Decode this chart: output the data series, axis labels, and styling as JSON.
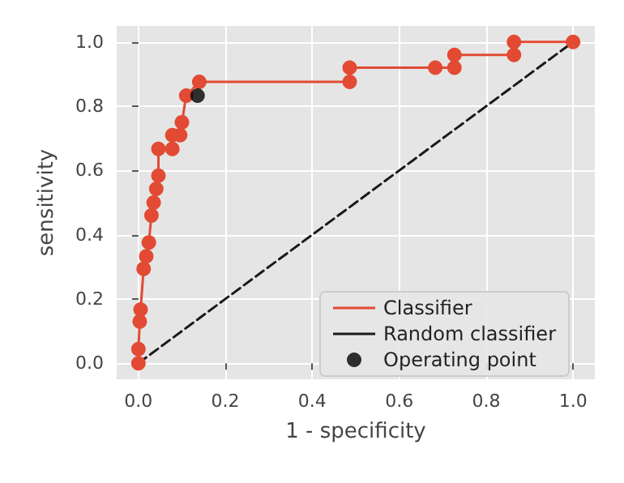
{
  "chart_data": {
    "type": "line",
    "xlabel": "1 - specificity",
    "ylabel": "sensitivity",
    "xlim": [
      -0.05,
      1.05
    ],
    "ylim": [
      -0.05,
      1.05
    ],
    "xticks": [
      {
        "value": 0,
        "label": "0.0"
      },
      {
        "value": 0.2,
        "label": "0.2"
      },
      {
        "value": 0.4,
        "label": "0.4"
      },
      {
        "value": 0.6,
        "label": "0.6"
      },
      {
        "value": 0.8,
        "label": "0.8"
      },
      {
        "value": 1,
        "label": "1.0"
      }
    ],
    "yticks": [
      {
        "value": 0,
        "label": "0.0"
      },
      {
        "value": 0.2,
        "label": "0.2"
      },
      {
        "value": 0.4,
        "label": "0.4"
      },
      {
        "value": 0.6,
        "label": "0.6"
      },
      {
        "value": 0.8,
        "label": "0.8"
      },
      {
        "value": 1,
        "label": "1.0"
      }
    ],
    "grid": true,
    "legend": "bottom right",
    "series": [
      {
        "name": "Classifier",
        "color": "#e24a33",
        "marker": "circle",
        "line_style": "solid",
        "x": [
          0,
          0,
          0.003,
          0.005,
          0.012,
          0.018,
          0.024,
          0.03,
          0.035,
          0.041,
          0.046,
          0.046,
          0.078,
          0.078,
          0.096,
          0.1,
          0.11,
          0.14,
          0.486,
          0.486,
          0.683,
          0.727,
          0.727,
          0.864,
          0.864,
          1.0
        ],
        "values": [
          0,
          0.044,
          0.13,
          0.167,
          0.294,
          0.333,
          0.376,
          0.46,
          0.5,
          0.543,
          0.584,
          0.667,
          0.667,
          0.71,
          0.71,
          0.75,
          0.833,
          0.876,
          0.876,
          0.92,
          0.92,
          0.92,
          0.96,
          0.96,
          1.0,
          1.0
        ]
      },
      {
        "name": "Random classifier",
        "color": "#1a1a1a",
        "marker": "none",
        "line_style": "dashed",
        "x": [
          0,
          1
        ],
        "values": [
          0,
          1
        ]
      },
      {
        "name": "Operating point",
        "type": "scatter",
        "color": "#000000",
        "marker": "circle",
        "x": [
          0.136
        ],
        "values": [
          0.833
        ]
      }
    ]
  }
}
